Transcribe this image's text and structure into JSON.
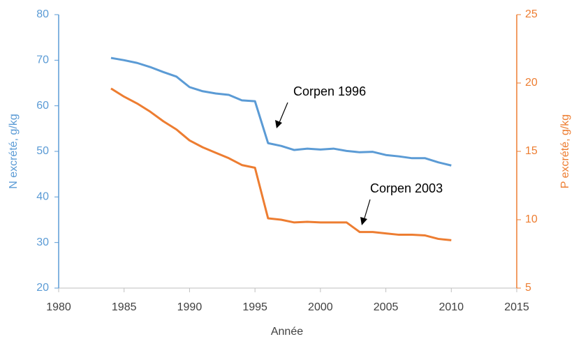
{
  "chart_data": {
    "type": "line",
    "x_label": "Année",
    "y_label": "N excrété, g/kg",
    "y2_label": "P excrété, g/kg",
    "x": [
      1984,
      1985,
      1986,
      1987,
      1988,
      1989,
      1990,
      1991,
      1992,
      1993,
      1994,
      1995,
      1996,
      1997,
      1998,
      1999,
      2000,
      2001,
      2002,
      2003,
      2004,
      2005,
      2006,
      2007,
      2008,
      2009,
      2010
    ],
    "series": [
      {
        "name": "N excrété",
        "color": "#5b9bd5",
        "axis": "y",
        "values": [
          70.5,
          70.0,
          69.4,
          68.5,
          67.4,
          66.4,
          64.1,
          63.2,
          62.7,
          62.4,
          61.2,
          61.0,
          51.8,
          51.2,
          50.3,
          50.6,
          50.4,
          50.6,
          50.1,
          49.8,
          49.9,
          49.2,
          48.9,
          48.5,
          48.5,
          47.6,
          46.9
        ]
      },
      {
        "name": "P excrété",
        "color": "#ed7d31",
        "axis": "y2",
        "values": [
          19.6,
          19.0,
          18.5,
          17.9,
          17.2,
          16.6,
          15.8,
          15.3,
          14.9,
          14.5,
          14.0,
          13.8,
          10.1,
          10.0,
          9.8,
          9.85,
          9.8,
          9.8,
          9.8,
          9.1,
          9.1,
          9.0,
          8.9,
          8.9,
          8.85,
          8.6,
          8.5
        ]
      }
    ],
    "xlim": [
      1980,
      2015
    ],
    "xticks": [
      1980,
      1985,
      1990,
      1995,
      2000,
      2005,
      2010,
      2015
    ],
    "ylim": [
      20,
      80
    ],
    "yticks": [
      20,
      30,
      40,
      50,
      60,
      70,
      80
    ],
    "y2lim": [
      5,
      25
    ],
    "y2ticks": [
      5,
      10,
      15,
      20,
      25
    ],
    "grid": false,
    "annotations": [
      {
        "text": "Corpen 1996"
      },
      {
        "text": "Corpen 2003"
      }
    ]
  }
}
